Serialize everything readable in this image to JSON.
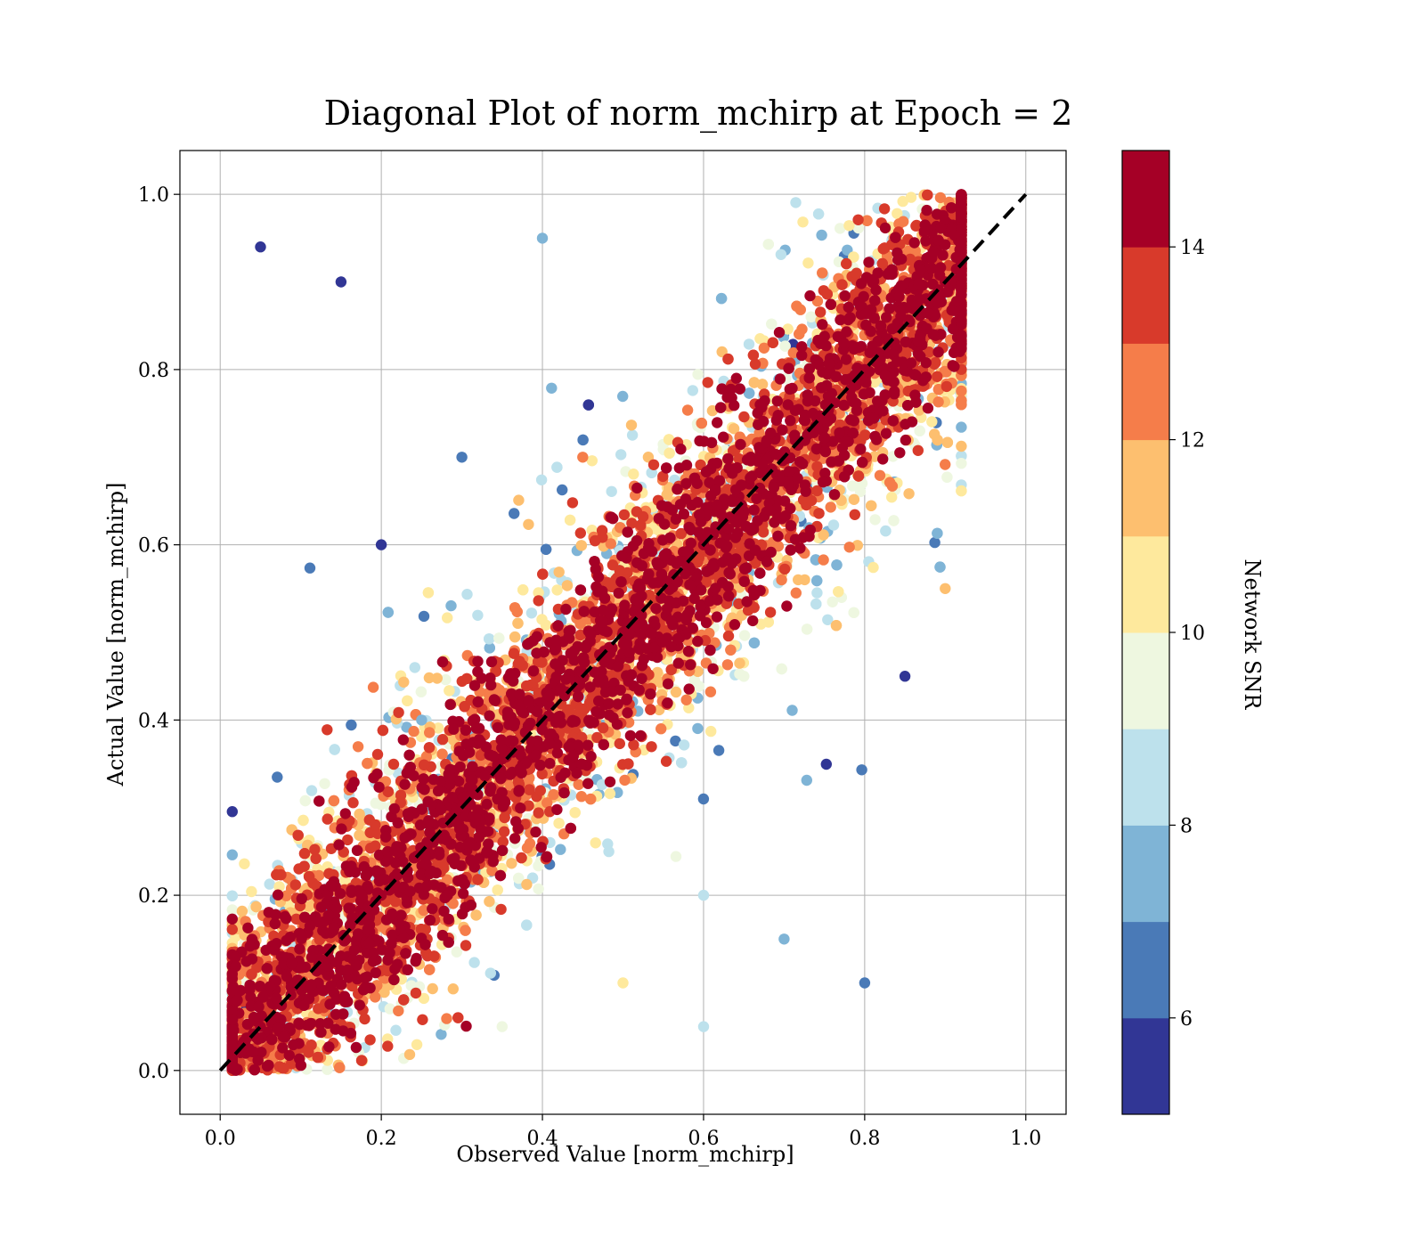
{
  "chart_data": {
    "type": "scatter",
    "title": "Diagonal Plot of norm_mchirp at Epoch = 2",
    "xlabel": "Observed Value [norm_mchirp]",
    "ylabel": "Actual Value [norm_mchirp]",
    "xlim": [
      -0.05,
      1.05
    ],
    "ylim": [
      -0.05,
      1.05
    ],
    "xticks": [
      "0.0",
      "0.2",
      "0.4",
      "0.6",
      "0.8",
      "1.0"
    ],
    "yticks": [
      "0.0",
      "0.2",
      "0.4",
      "0.6",
      "0.8",
      "1.0"
    ],
    "grid": true,
    "reference_line": {
      "x": [
        0,
        1
      ],
      "y": [
        0,
        1
      ],
      "style": "dashed",
      "color": "#000000"
    },
    "colorbar": {
      "label": "Network SNR",
      "range": [
        5,
        15
      ],
      "ticks": [
        "6",
        "8",
        "10",
        "12",
        "14"
      ],
      "colormap": "RdYlBu_r",
      "levels": [
        {
          "from": 5,
          "to": 6,
          "color": "#313695"
        },
        {
          "from": 6,
          "to": 7,
          "color": "#4a7ab7"
        },
        {
          "from": 7,
          "to": 8,
          "color": "#7fb4d6"
        },
        {
          "from": 8,
          "to": 9,
          "color": "#bde1ec"
        },
        {
          "from": 9,
          "to": 10,
          "color": "#eef7e0"
        },
        {
          "from": 10,
          "to": 11,
          "color": "#fee99d"
        },
        {
          "from": 11,
          "to": 12,
          "color": "#fdbf6f"
        },
        {
          "from": 12,
          "to": 13,
          "color": "#f57d4a"
        },
        {
          "from": 13,
          "to": 14,
          "color": "#d83a2b"
        },
        {
          "from": 14,
          "to": 15,
          "color": "#a50026"
        }
      ]
    },
    "series": [
      {
        "description_points": "approximate representative points (observed x, actual y, network SNR)",
        "points": [
          [
            0.05,
            0.05,
            15
          ],
          [
            0.1,
            0.1,
            15
          ],
          [
            0.2,
            0.2,
            15
          ],
          [
            0.3,
            0.3,
            15
          ],
          [
            0.4,
            0.4,
            15
          ],
          [
            0.5,
            0.5,
            15
          ],
          [
            0.6,
            0.6,
            15
          ],
          [
            0.7,
            0.7,
            15
          ],
          [
            0.8,
            0.8,
            15
          ],
          [
            0.9,
            0.9,
            15
          ],
          [
            0.2,
            0.6,
            5.5
          ],
          [
            0.3,
            0.7,
            6
          ],
          [
            0.15,
            0.9,
            5.5
          ],
          [
            0.4,
            0.95,
            7
          ],
          [
            0.05,
            0.94,
            5.5
          ],
          [
            0.6,
            0.2,
            8
          ],
          [
            0.7,
            0.15,
            7
          ],
          [
            0.8,
            0.1,
            6
          ],
          [
            0.85,
            0.45,
            5.5
          ],
          [
            0.9,
            0.55,
            11
          ],
          [
            0.35,
            0.05,
            9
          ],
          [
            0.5,
            0.1,
            10
          ],
          [
            0.6,
            0.05,
            8
          ],
          [
            0.25,
            0.4,
            7
          ],
          [
            0.45,
            0.7,
            12
          ]
        ]
      }
    ]
  }
}
